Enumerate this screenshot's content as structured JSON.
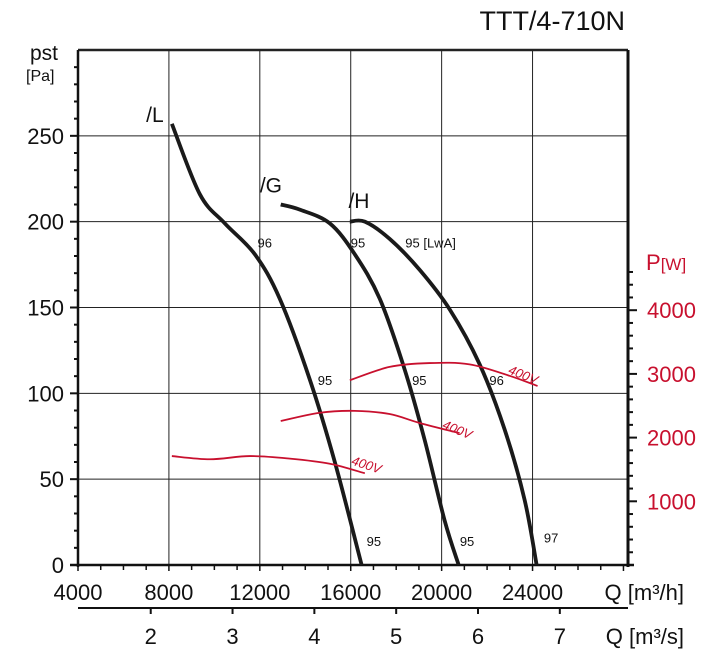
{
  "chart_data": {
    "type": "line",
    "title": "TTT/4-710N",
    "ylabel": "pst",
    "ylabel_unit": "[Pa]",
    "y2label": "P",
    "y2label_unit": "[W]",
    "xlabel": "Q [m³/h]",
    "x2label": "Q [m³/s]",
    "xlim": [
      4000,
      28200
    ],
    "ylim": [
      0,
      300
    ],
    "y2lim": [
      0,
      4000
    ],
    "grid": true,
    "x_ticks": [
      "4000",
      "8000",
      "12000",
      "16000",
      "20000",
      "24000"
    ],
    "x_tick_values": [
      4000,
      8000,
      12000,
      16000,
      20000,
      24000
    ],
    "x2_ticks": [
      "2",
      "3",
      "4",
      "5",
      "6",
      "7"
    ],
    "x2_tick_values": [
      2,
      3,
      4,
      5,
      6,
      7
    ],
    "y_ticks": [
      "0",
      "50",
      "100",
      "150",
      "200",
      "250"
    ],
    "y_tick_values": [
      0,
      50,
      100,
      150,
      200,
      250
    ],
    "y2_ticks": [
      "1000",
      "2000",
      "3000",
      "4000"
    ],
    "y2_tick_values": [
      1000,
      2000,
      3000,
      4000
    ],
    "colors": {
      "pressure": "#1a1a1a",
      "power": "#c8102e",
      "axis": "#111111"
    },
    "series": [
      {
        "name": "/L",
        "axis": "pressure",
        "label_at": [
          7000,
          258
        ],
        "points": [
          [
            8130,
            257
          ],
          [
            9360,
            216
          ],
          [
            10460,
            199
          ],
          [
            11780,
            181
          ],
          [
            12880,
            155
          ],
          [
            14200,
            108
          ],
          [
            15300,
            60
          ],
          [
            16480,
            0
          ]
        ]
      },
      {
        "name": "/G",
        "axis": "pressure",
        "label_at": [
          12000,
          217
        ],
        "points": [
          [
            12920,
            210
          ],
          [
            13760,
            207
          ],
          [
            15080,
            199
          ],
          [
            16180,
            181
          ],
          [
            17280,
            155
          ],
          [
            18370,
            114
          ],
          [
            19250,
            73
          ],
          [
            20130,
            26
          ],
          [
            20750,
            0
          ]
        ]
      },
      {
        "name": "/H",
        "axis": "pressure",
        "label_at": [
          15900,
          208
        ],
        "points": [
          [
            15960,
            200
          ],
          [
            16620,
            200
          ],
          [
            17710,
            190
          ],
          [
            19030,
            172
          ],
          [
            20350,
            149
          ],
          [
            21670,
            117
          ],
          [
            22770,
            79
          ],
          [
            23650,
            38
          ],
          [
            24180,
            0
          ]
        ]
      },
      {
        "name": "400V",
        "axis": "power",
        "label_at": [
          16000,
          1580
        ],
        "label_angle": 18,
        "points": [
          [
            8130,
            1710
          ],
          [
            9800,
            1660
          ],
          [
            11560,
            1710
          ],
          [
            13320,
            1670
          ],
          [
            15080,
            1590
          ],
          [
            16620,
            1440
          ]
        ]
      },
      {
        "name": "400V",
        "axis": "power",
        "label_at": [
          20000,
          2150
        ],
        "label_angle": 22,
        "points": [
          [
            12920,
            2260
          ],
          [
            14640,
            2390
          ],
          [
            16180,
            2420
          ],
          [
            17710,
            2370
          ],
          [
            19030,
            2230
          ],
          [
            20790,
            2070
          ]
        ]
      },
      {
        "name": "400V",
        "axis": "power",
        "label_at": [
          22900,
          3010
        ],
        "label_angle": 22,
        "points": [
          [
            15960,
            2900
          ],
          [
            17710,
            3110
          ],
          [
            19470,
            3170
          ],
          [
            21230,
            3150
          ],
          [
            22990,
            2970
          ],
          [
            24220,
            2810
          ]
        ]
      }
    ],
    "annotations": [
      {
        "text": "96",
        "at": [
          11900,
          185
        ]
      },
      {
        "text": "95",
        "at": [
          16000,
          185
        ]
      },
      {
        "text": "95 [LwA]",
        "at": [
          18400,
          185
        ]
      },
      {
        "text": "95",
        "at": [
          14550,
          105
        ]
      },
      {
        "text": "95",
        "at": [
          18700,
          105
        ]
      },
      {
        "text": "96",
        "at": [
          22100,
          105
        ]
      },
      {
        "text": "95",
        "at": [
          16700,
          11
        ]
      },
      {
        "text": "95",
        "at": [
          20800,
          11
        ]
      },
      {
        "text": "97",
        "at": [
          24500,
          13
        ]
      }
    ]
  }
}
